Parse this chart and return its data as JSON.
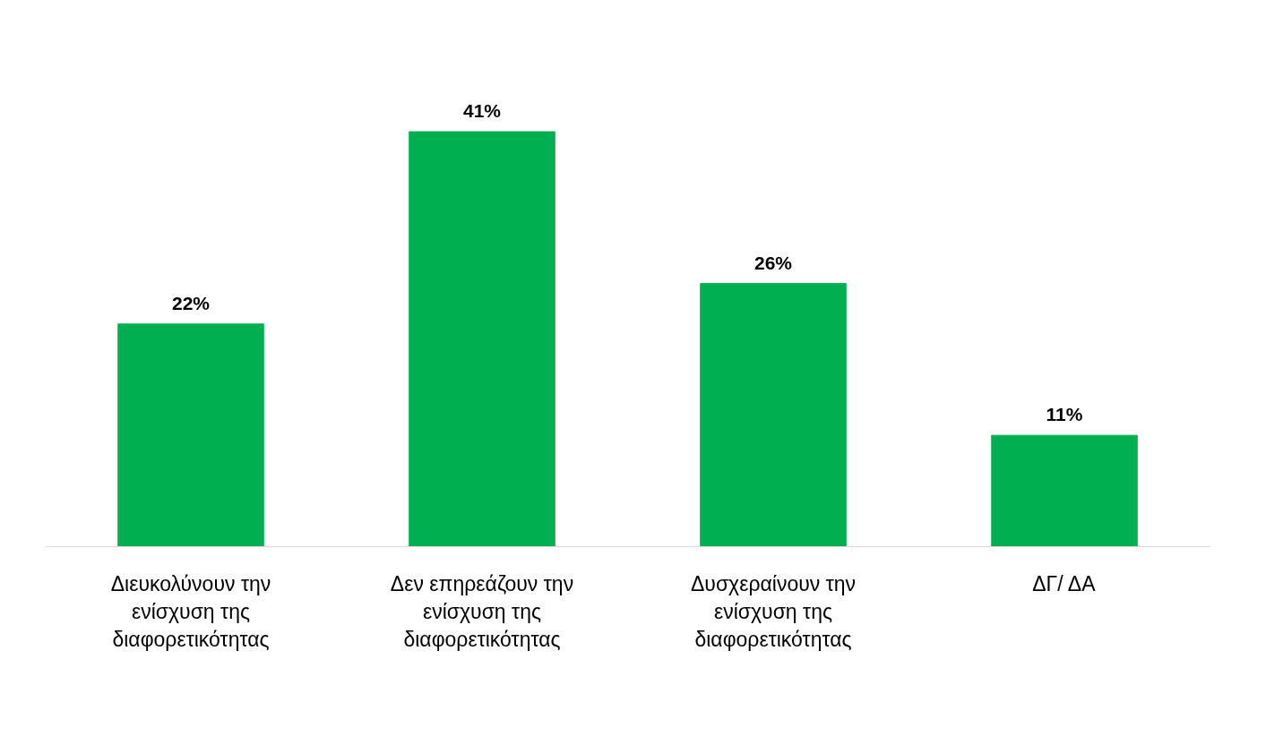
{
  "chart_data": {
    "type": "bar",
    "categories": [
      "Διευκολύνουν την ενίσχυση της διαφορετικότητας",
      "Δεν επηρεάζουν την ενίσχυση της διαφορετικότητας",
      "Δυσχεραίνουν την ενίσχυση της διαφορετικότητας",
      "ΔΓ/ ΔΑ"
    ],
    "values": [
      22,
      41,
      26,
      11
    ],
    "value_labels": [
      "22%",
      "41%",
      "26%",
      "11%"
    ],
    "color": "#00b050",
    "grid": false
  }
}
